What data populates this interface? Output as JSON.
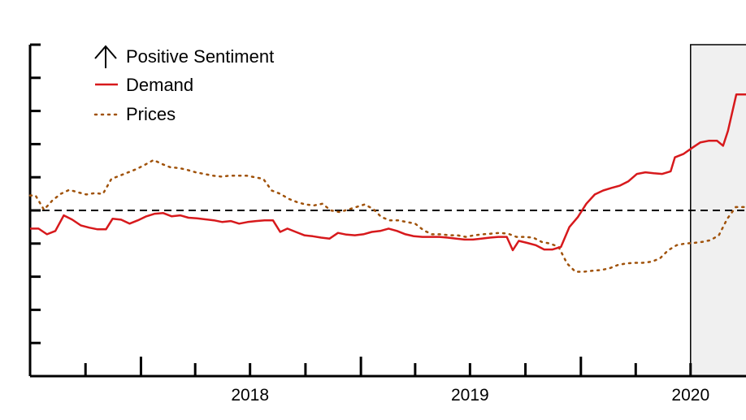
{
  "chart_data": {
    "type": "line",
    "title": "",
    "xlabel": "",
    "ylabel": "",
    "x_ticks": [
      "2018",
      "2019",
      "2020"
    ],
    "xlim": [
      "2017-07-01",
      "2020-10-01"
    ],
    "ylim": [
      -5,
      5
    ],
    "y_tick_count": 11,
    "y_tick_labels_shown": false,
    "zero_line": {
      "y": 0,
      "style": "dashed",
      "color": "#000000"
    },
    "shaded_region": {
      "start": "2020-07-01",
      "end": "2020-10-01",
      "color": "#f0f0f0"
    },
    "legend": {
      "position": "top-left",
      "heading": "Positive Sentiment",
      "heading_icon": "up-arrow-icon",
      "entries": [
        {
          "label": "Demand",
          "style": "solid",
          "color": "#d7191c"
        },
        {
          "label": "Prices",
          "style": "dotted",
          "color": "#a0520a"
        }
      ]
    },
    "series": [
      {
        "name": "Demand",
        "color": "#d7191c",
        "style": "solid",
        "points": [
          [
            "2017-07-01",
            -0.55
          ],
          [
            "2017-07-15",
            -0.55
          ],
          [
            "2017-07-29",
            -0.72
          ],
          [
            "2017-08-12",
            -0.62
          ],
          [
            "2017-08-26",
            -0.15
          ],
          [
            "2017-09-09",
            -0.28
          ],
          [
            "2017-09-23",
            -0.45
          ],
          [
            "2017-10-07",
            -0.52
          ],
          [
            "2017-10-21",
            -0.57
          ],
          [
            "2017-11-04",
            -0.57
          ],
          [
            "2017-11-15",
            -0.25
          ],
          [
            "2017-11-29",
            -0.28
          ],
          [
            "2017-12-13",
            -0.4
          ],
          [
            "2017-12-27",
            -0.3
          ],
          [
            "2018-01-10",
            -0.18
          ],
          [
            "2018-01-24",
            -0.1
          ],
          [
            "2018-02-07",
            -0.08
          ],
          [
            "2018-02-21",
            -0.18
          ],
          [
            "2018-03-07",
            -0.15
          ],
          [
            "2018-03-21",
            -0.22
          ],
          [
            "2018-04-04",
            -0.24
          ],
          [
            "2018-04-18",
            -0.27
          ],
          [
            "2018-05-02",
            -0.3
          ],
          [
            "2018-05-16",
            -0.35
          ],
          [
            "2018-05-30",
            -0.32
          ],
          [
            "2018-06-13",
            -0.4
          ],
          [
            "2018-06-27",
            -0.35
          ],
          [
            "2018-07-11",
            -0.32
          ],
          [
            "2018-07-25",
            -0.3
          ],
          [
            "2018-08-08",
            -0.3
          ],
          [
            "2018-08-20",
            -0.65
          ],
          [
            "2018-09-01",
            -0.55
          ],
          [
            "2018-09-15",
            -0.65
          ],
          [
            "2018-09-29",
            -0.75
          ],
          [
            "2018-10-13",
            -0.78
          ],
          [
            "2018-10-27",
            -0.82
          ],
          [
            "2018-11-10",
            -0.85
          ],
          [
            "2018-11-24",
            -0.68
          ],
          [
            "2018-12-08",
            -0.73
          ],
          [
            "2018-12-22",
            -0.75
          ],
          [
            "2019-01-05",
            -0.72
          ],
          [
            "2019-01-19",
            -0.65
          ],
          [
            "2019-02-02",
            -0.62
          ],
          [
            "2019-02-16",
            -0.55
          ],
          [
            "2019-03-02",
            -0.62
          ],
          [
            "2019-03-16",
            -0.72
          ],
          [
            "2019-03-30",
            -0.78
          ],
          [
            "2019-04-13",
            -0.8
          ],
          [
            "2019-04-27",
            -0.8
          ],
          [
            "2019-05-11",
            -0.8
          ],
          [
            "2019-05-25",
            -0.82
          ],
          [
            "2019-06-08",
            -0.85
          ],
          [
            "2019-06-22",
            -0.88
          ],
          [
            "2019-07-06",
            -0.88
          ],
          [
            "2019-07-20",
            -0.85
          ],
          [
            "2019-08-03",
            -0.82
          ],
          [
            "2019-08-17",
            -0.8
          ],
          [
            "2019-08-31",
            -0.8
          ],
          [
            "2019-09-10",
            -1.2
          ],
          [
            "2019-09-20",
            -0.92
          ],
          [
            "2019-10-04",
            -0.98
          ],
          [
            "2019-10-18",
            -1.05
          ],
          [
            "2019-11-01",
            -1.18
          ],
          [
            "2019-11-15",
            -1.18
          ],
          [
            "2019-11-29",
            -1.1
          ],
          [
            "2019-12-13",
            -0.5
          ],
          [
            "2019-12-27",
            -0.2
          ],
          [
            "2020-01-10",
            0.2
          ],
          [
            "2020-01-24",
            0.48
          ],
          [
            "2020-02-07",
            0.6
          ],
          [
            "2020-02-21",
            0.68
          ],
          [
            "2020-03-06",
            0.75
          ],
          [
            "2020-03-20",
            0.88
          ],
          [
            "2020-04-03",
            1.1
          ],
          [
            "2020-04-17",
            1.15
          ],
          [
            "2020-05-01",
            1.12
          ],
          [
            "2020-05-15",
            1.1
          ],
          [
            "2020-05-29",
            1.18
          ],
          [
            "2020-06-05",
            1.6
          ],
          [
            "2020-06-19",
            1.7
          ],
          [
            "2020-07-03",
            1.88
          ],
          [
            "2020-07-17",
            2.05
          ],
          [
            "2020-07-31",
            2.1
          ],
          [
            "2020-08-14",
            2.1
          ],
          [
            "2020-08-24",
            1.95
          ],
          [
            "2020-09-01",
            2.4
          ],
          [
            "2020-09-15",
            3.5
          ],
          [
            "2020-10-01",
            3.5
          ]
        ]
      },
      {
        "name": "Prices",
        "color": "#a0520a",
        "style": "dotted",
        "points": [
          [
            "2017-07-01",
            0.45
          ],
          [
            "2017-07-10",
            0.45
          ],
          [
            "2017-07-24",
            0.02
          ],
          [
            "2017-08-07",
            0.3
          ],
          [
            "2017-08-21",
            0.5
          ],
          [
            "2017-09-04",
            0.62
          ],
          [
            "2017-09-18",
            0.55
          ],
          [
            "2017-10-02",
            0.48
          ],
          [
            "2017-10-16",
            0.52
          ],
          [
            "2017-10-30",
            0.5
          ],
          [
            "2017-11-13",
            0.95
          ],
          [
            "2017-11-27",
            1.05
          ],
          [
            "2017-12-11",
            1.15
          ],
          [
            "2017-12-25",
            1.25
          ],
          [
            "2018-01-08",
            1.38
          ],
          [
            "2018-01-22",
            1.52
          ],
          [
            "2018-02-05",
            1.4
          ],
          [
            "2018-02-19",
            1.3
          ],
          [
            "2018-03-05",
            1.28
          ],
          [
            "2018-03-19",
            1.22
          ],
          [
            "2018-04-02",
            1.15
          ],
          [
            "2018-04-16",
            1.1
          ],
          [
            "2018-04-30",
            1.05
          ],
          [
            "2018-05-14",
            1.02
          ],
          [
            "2018-05-28",
            1.05
          ],
          [
            "2018-06-11",
            1.05
          ],
          [
            "2018-06-25",
            1.05
          ],
          [
            "2018-07-09",
            1.0
          ],
          [
            "2018-07-23",
            0.95
          ],
          [
            "2018-08-06",
            0.6
          ],
          [
            "2018-08-20",
            0.5
          ],
          [
            "2018-09-03",
            0.35
          ],
          [
            "2018-09-17",
            0.25
          ],
          [
            "2018-10-01",
            0.18
          ],
          [
            "2018-10-15",
            0.15
          ],
          [
            "2018-10-29",
            0.2
          ],
          [
            "2018-11-12",
            0.0
          ],
          [
            "2018-11-26",
            -0.05
          ],
          [
            "2018-12-10",
            0.02
          ],
          [
            "2018-12-24",
            0.1
          ],
          [
            "2019-01-07",
            0.18
          ],
          [
            "2019-01-21",
            0.05
          ],
          [
            "2019-02-04",
            -0.2
          ],
          [
            "2019-02-18",
            -0.3
          ],
          [
            "2019-03-04",
            -0.3
          ],
          [
            "2019-03-18",
            -0.35
          ],
          [
            "2019-04-01",
            -0.4
          ],
          [
            "2019-04-15",
            -0.6
          ],
          [
            "2019-04-29",
            -0.72
          ],
          [
            "2019-05-13",
            -0.72
          ],
          [
            "2019-05-27",
            -0.75
          ],
          [
            "2019-06-10",
            -0.75
          ],
          [
            "2019-06-24",
            -0.8
          ],
          [
            "2019-07-08",
            -0.75
          ],
          [
            "2019-07-22",
            -0.72
          ],
          [
            "2019-08-05",
            -0.7
          ],
          [
            "2019-08-19",
            -0.68
          ],
          [
            "2019-09-02",
            -0.7
          ],
          [
            "2019-09-16",
            -0.8
          ],
          [
            "2019-09-30",
            -0.8
          ],
          [
            "2019-10-14",
            -0.82
          ],
          [
            "2019-10-28",
            -0.95
          ],
          [
            "2019-11-11",
            -1.0
          ],
          [
            "2019-11-25",
            -1.1
          ],
          [
            "2019-12-09",
            -1.6
          ],
          [
            "2019-12-23",
            -1.85
          ],
          [
            "2020-01-06",
            -1.85
          ],
          [
            "2020-01-20",
            -1.82
          ],
          [
            "2020-02-03",
            -1.8
          ],
          [
            "2020-02-17",
            -1.75
          ],
          [
            "2020-03-02",
            -1.65
          ],
          [
            "2020-03-16",
            -1.6
          ],
          [
            "2020-03-30",
            -1.58
          ],
          [
            "2020-04-13",
            -1.58
          ],
          [
            "2020-04-27",
            -1.55
          ],
          [
            "2020-05-11",
            -1.45
          ],
          [
            "2020-05-25",
            -1.2
          ],
          [
            "2020-06-08",
            -1.05
          ],
          [
            "2020-06-22",
            -1.0
          ],
          [
            "2020-07-06",
            -0.98
          ],
          [
            "2020-07-20",
            -0.95
          ],
          [
            "2020-08-03",
            -0.9
          ],
          [
            "2020-08-17",
            -0.75
          ],
          [
            "2020-08-31",
            -0.25
          ],
          [
            "2020-09-14",
            0.1
          ],
          [
            "2020-10-01",
            0.1
          ]
        ]
      }
    ]
  }
}
